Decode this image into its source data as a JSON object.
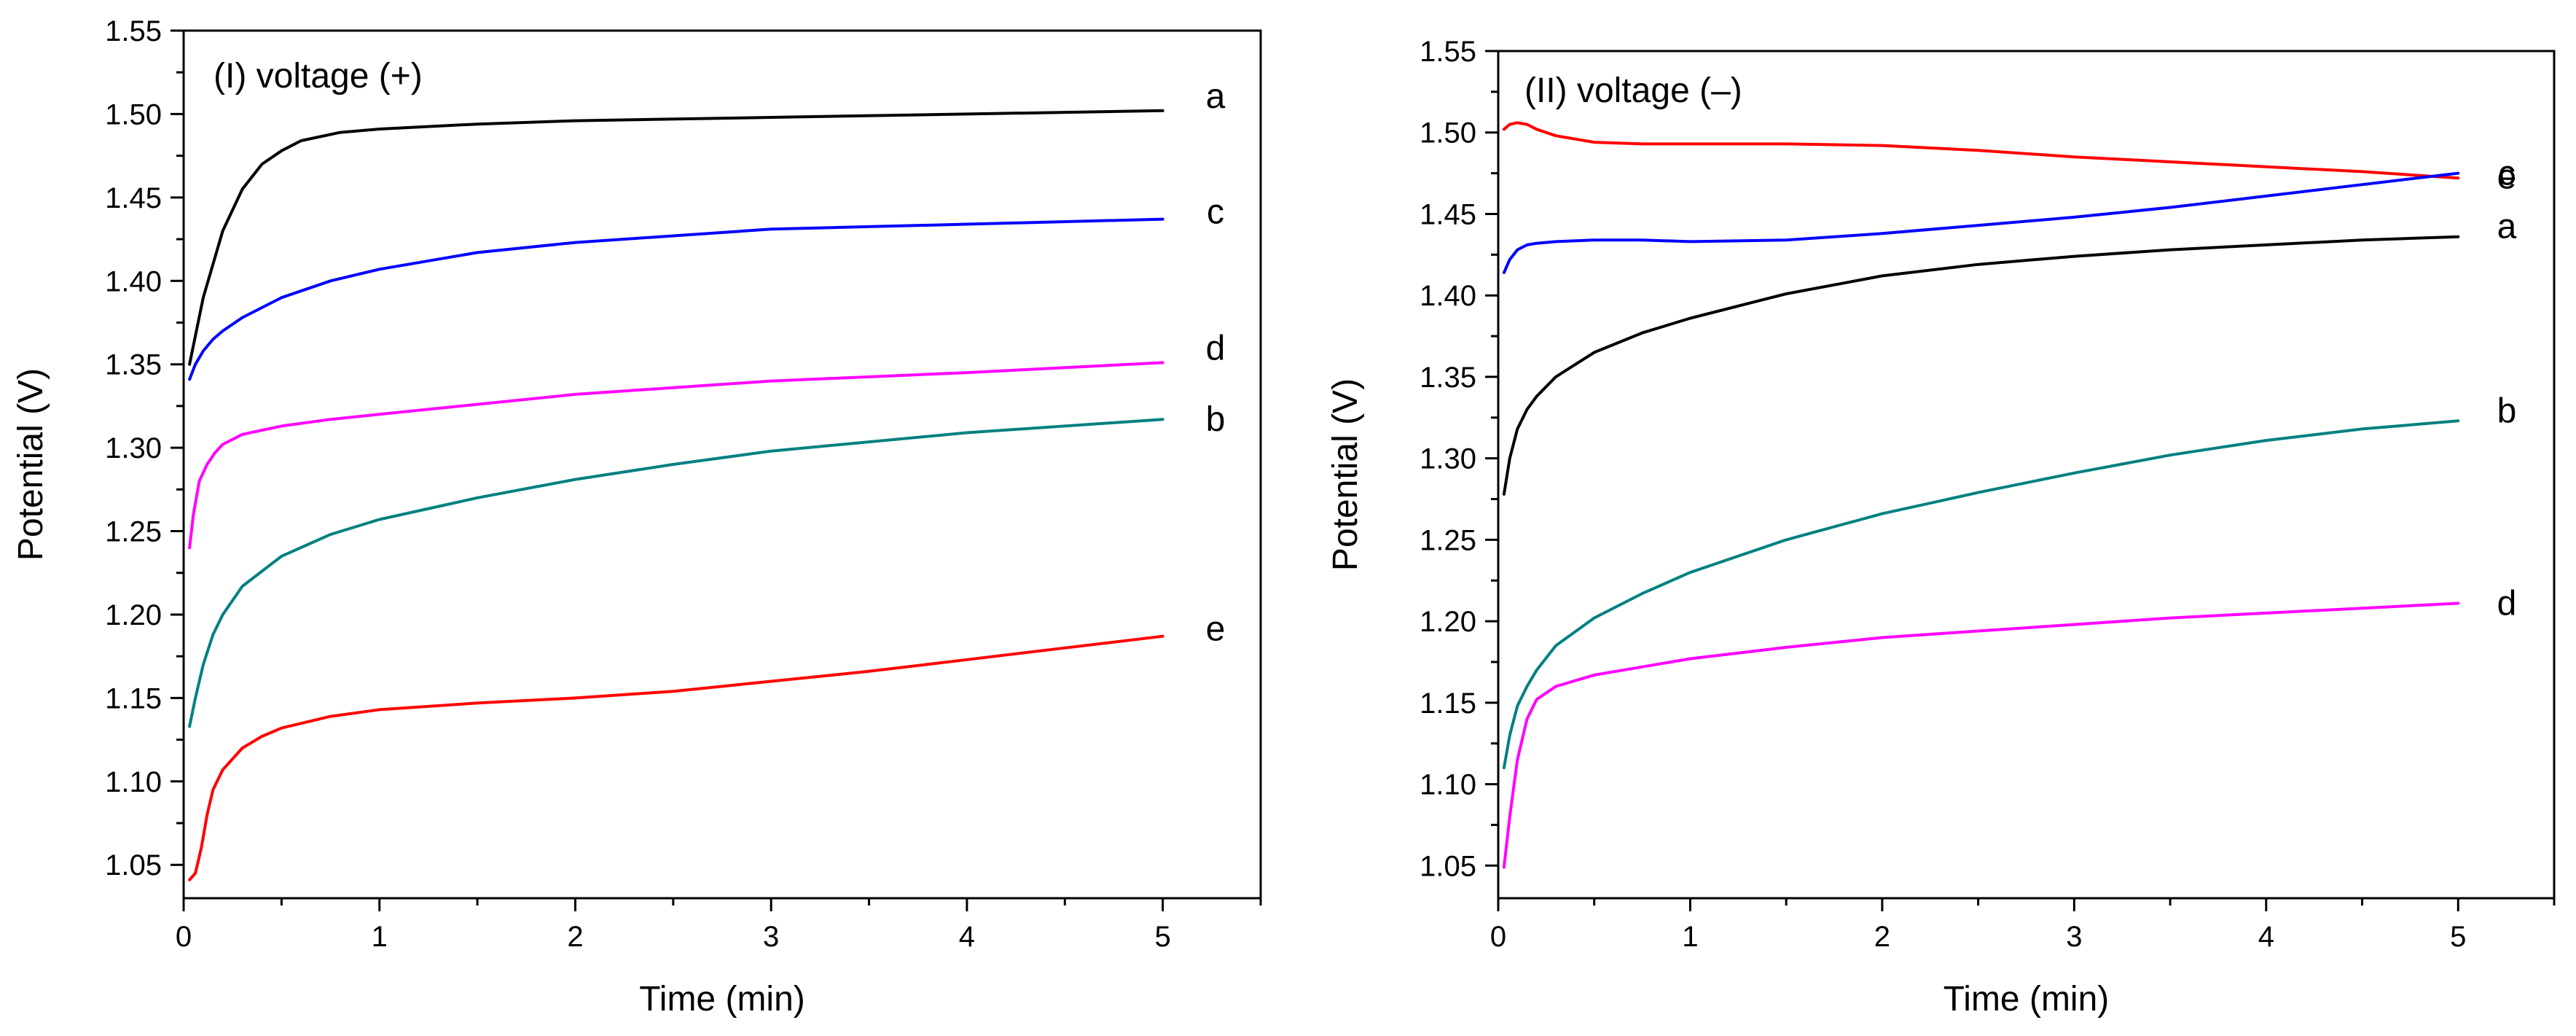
{
  "chart_data": [
    {
      "type": "line",
      "title": "(I) voltage (+)",
      "xlabel": "Time (min)",
      "ylabel": "Potential (V)",
      "xlim": [
        0,
        5.5
      ],
      "ylim": [
        1.03,
        1.55
      ],
      "xticks": [
        0,
        1,
        2,
        3,
        4,
        5
      ],
      "xtick_labels": [
        "0",
        "1",
        "2",
        "3",
        "4",
        "5"
      ],
      "yticks": [
        1.05,
        1.1,
        1.15,
        1.2,
        1.25,
        1.3,
        1.35,
        1.4,
        1.45,
        1.5,
        1.55
      ],
      "ytick_labels": [
        "1.05",
        "1.10",
        "1.15",
        "1.20",
        "1.25",
        "1.30",
        "1.35",
        "1.40",
        "1.45",
        "1.50",
        "1.55"
      ],
      "series": [
        {
          "name": "a",
          "label": "a",
          "color": "#000000",
          "x": [
            0.03,
            0.1,
            0.2,
            0.3,
            0.4,
            0.5,
            0.6,
            0.8,
            1.0,
            1.5,
            2.0,
            3.0,
            4.0,
            5.0
          ],
          "y": [
            1.35,
            1.39,
            1.43,
            1.455,
            1.47,
            1.478,
            1.484,
            1.489,
            1.491,
            1.494,
            1.496,
            1.498,
            1.5,
            1.502
          ]
        },
        {
          "name": "b",
          "label": "b",
          "color": "#008080",
          "x": [
            0.03,
            0.06,
            0.1,
            0.15,
            0.2,
            0.3,
            0.5,
            0.75,
            1.0,
            1.5,
            2.0,
            2.5,
            3.0,
            4.0,
            5.0
          ],
          "y": [
            1.133,
            1.15,
            1.17,
            1.188,
            1.2,
            1.217,
            1.235,
            1.248,
            1.257,
            1.27,
            1.281,
            1.29,
            1.298,
            1.309,
            1.317
          ]
        },
        {
          "name": "c",
          "label": "c",
          "color": "#0000FF",
          "x": [
            0.03,
            0.06,
            0.1,
            0.15,
            0.2,
            0.3,
            0.5,
            0.75,
            1.0,
            1.5,
            2.0,
            3.0,
            4.0,
            5.0
          ],
          "y": [
            1.341,
            1.35,
            1.358,
            1.365,
            1.37,
            1.378,
            1.39,
            1.4,
            1.407,
            1.417,
            1.423,
            1.431,
            1.434,
            1.437
          ]
        },
        {
          "name": "d",
          "label": "d",
          "color": "#FF00FF",
          "x": [
            0.03,
            0.05,
            0.08,
            0.12,
            0.16,
            0.2,
            0.3,
            0.5,
            0.75,
            1.0,
            1.5,
            2.0,
            3.0,
            4.0,
            5.0
          ],
          "y": [
            1.24,
            1.26,
            1.28,
            1.29,
            1.297,
            1.302,
            1.308,
            1.313,
            1.317,
            1.32,
            1.326,
            1.332,
            1.34,
            1.345,
            1.351
          ]
        },
        {
          "name": "e",
          "label": "e",
          "color": "#FF0000",
          "x": [
            0.03,
            0.06,
            0.09,
            0.12,
            0.15,
            0.2,
            0.3,
            0.4,
            0.5,
            0.75,
            1.0,
            1.5,
            2.0,
            2.5,
            3.0,
            3.5,
            4.0,
            4.5,
            5.0
          ],
          "y": [
            1.041,
            1.045,
            1.06,
            1.08,
            1.095,
            1.107,
            1.12,
            1.127,
            1.132,
            1.139,
            1.143,
            1.147,
            1.15,
            1.154,
            1.16,
            1.166,
            1.173,
            1.18,
            1.187
          ]
        }
      ]
    },
    {
      "type": "line",
      "title": "(II) voltage (–)",
      "xlabel": "Time (min)",
      "ylabel": "Potential (V)",
      "xlim": [
        0,
        5.5
      ],
      "ylim": [
        1.03,
        1.55
      ],
      "xticks": [
        0,
        1,
        2,
        3,
        4,
        5
      ],
      "xtick_labels": [
        "0",
        "1",
        "2",
        "3",
        "4",
        "5"
      ],
      "yticks": [
        1.05,
        1.1,
        1.15,
        1.2,
        1.25,
        1.3,
        1.35,
        1.4,
        1.45,
        1.5,
        1.55
      ],
      "ytick_labels": [
        "1.05",
        "1.10",
        "1.15",
        "1.20",
        "1.25",
        "1.30",
        "1.35",
        "1.40",
        "1.45",
        "1.50",
        "1.55"
      ],
      "series": [
        {
          "name": "e",
          "label": "e",
          "color": "#FF0000",
          "x": [
            0.03,
            0.06,
            0.1,
            0.15,
            0.2,
            0.3,
            0.5,
            0.75,
            1.0,
            1.5,
            2.0,
            2.5,
            3.0,
            3.5,
            4.0,
            4.5,
            5.0
          ],
          "y": [
            1.502,
            1.505,
            1.506,
            1.505,
            1.502,
            1.498,
            1.494,
            1.493,
            1.493,
            1.493,
            1.492,
            1.489,
            1.485,
            1.482,
            1.479,
            1.476,
            1.472
          ]
        },
        {
          "name": "c",
          "label": "c",
          "color": "#0000FF",
          "x": [
            0.03,
            0.06,
            0.1,
            0.15,
            0.2,
            0.3,
            0.5,
            0.75,
            1.0,
            1.5,
            2.0,
            2.5,
            3.0,
            3.5,
            4.0,
            4.5,
            5.0
          ],
          "y": [
            1.414,
            1.422,
            1.428,
            1.431,
            1.432,
            1.433,
            1.434,
            1.434,
            1.433,
            1.434,
            1.438,
            1.443,
            1.448,
            1.454,
            1.461,
            1.468,
            1.475
          ]
        },
        {
          "name": "a",
          "label": "a",
          "color": "#000000",
          "x": [
            0.03,
            0.06,
            0.1,
            0.15,
            0.2,
            0.3,
            0.5,
            0.75,
            1.0,
            1.5,
            2.0,
            2.5,
            3.0,
            3.5,
            4.0,
            4.5,
            5.0
          ],
          "y": [
            1.278,
            1.3,
            1.318,
            1.33,
            1.338,
            1.35,
            1.365,
            1.377,
            1.386,
            1.401,
            1.412,
            1.419,
            1.424,
            1.428,
            1.431,
            1.434,
            1.436
          ]
        },
        {
          "name": "b",
          "label": "b",
          "color": "#008080",
          "x": [
            0.03,
            0.06,
            0.1,
            0.15,
            0.2,
            0.3,
            0.5,
            0.75,
            1.0,
            1.5,
            2.0,
            2.5,
            3.0,
            3.5,
            4.0,
            4.5,
            5.0
          ],
          "y": [
            1.11,
            1.13,
            1.148,
            1.16,
            1.17,
            1.185,
            1.202,
            1.217,
            1.23,
            1.25,
            1.266,
            1.279,
            1.291,
            1.302,
            1.311,
            1.318,
            1.323
          ]
        },
        {
          "name": "d",
          "label": "d",
          "color": "#FF00FF",
          "x": [
            0.03,
            0.06,
            0.1,
            0.15,
            0.2,
            0.3,
            0.5,
            0.75,
            1.0,
            1.5,
            2.0,
            2.5,
            3.0,
            3.5,
            4.0,
            4.5,
            5.0
          ],
          "y": [
            1.049,
            1.08,
            1.115,
            1.14,
            1.152,
            1.16,
            1.167,
            1.172,
            1.177,
            1.184,
            1.19,
            1.194,
            1.198,
            1.202,
            1.205,
            1.208,
            1.211
          ]
        }
      ]
    }
  ]
}
